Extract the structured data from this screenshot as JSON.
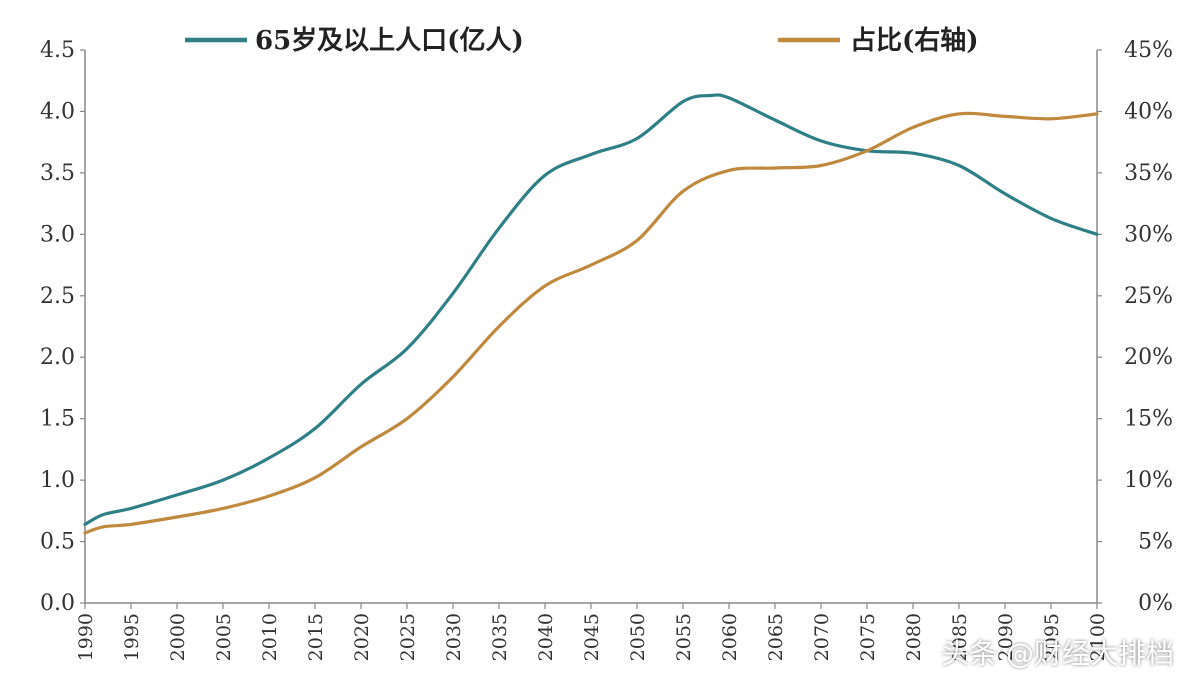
{
  "chart_data": {
    "type": "line",
    "title": "",
    "xlabel": "",
    "ylabel": "",
    "xlim": [
      1990,
      2100
    ],
    "ylim": [
      0,
      4.5
    ],
    "y2lim": [
      0,
      45
    ],
    "x_ticks": [
      "1990",
      "1995",
      "2000",
      "2005",
      "2010",
      "2015",
      "2020",
      "2025",
      "2030",
      "2035",
      "2040",
      "2045",
      "2050",
      "2055",
      "2060",
      "2065",
      "2070",
      "2075",
      "2080",
      "2085",
      "2090",
      "2095",
      "2100"
    ],
    "y_ticks": [
      "0.0",
      "0.5",
      "1.0",
      "1.5",
      "2.0",
      "2.5",
      "3.0",
      "3.5",
      "4.0",
      "4.5"
    ],
    "y2_ticks": [
      "0%",
      "5%",
      "10%",
      "15%",
      "20%",
      "25%",
      "30%",
      "35%",
      "40%",
      "45%"
    ],
    "grid": false,
    "legend_position": "top",
    "series": [
      {
        "name": "65岁及以上人口(亿人)",
        "axis": "left",
        "color": "#2e7f86",
        "x": [
          1990,
          1992,
          1995,
          2000,
          2005,
          2010,
          2015,
          2020,
          2025,
          2030,
          2035,
          2040,
          2045,
          2050,
          2055,
          2058,
          2060,
          2065,
          2070,
          2075,
          2080,
          2085,
          2090,
          2095,
          2100
        ],
        "values": [
          0.64,
          0.72,
          0.77,
          0.88,
          1.0,
          1.18,
          1.42,
          1.78,
          2.07,
          2.52,
          3.05,
          3.48,
          3.65,
          3.78,
          4.08,
          4.13,
          4.11,
          3.93,
          3.76,
          3.68,
          3.66,
          3.56,
          3.33,
          3.13,
          3.0
        ]
      },
      {
        "name": "占比(右轴)",
        "axis": "right",
        "color": "#c08a3e",
        "x": [
          1990,
          1992,
          1995,
          2000,
          2005,
          2010,
          2015,
          2020,
          2025,
          2030,
          2035,
          2040,
          2045,
          2050,
          2055,
          2060,
          2065,
          2070,
          2075,
          2080,
          2085,
          2090,
          2095,
          2100
        ],
        "values": [
          5.7,
          6.2,
          6.4,
          7.0,
          7.7,
          8.7,
          10.2,
          12.7,
          15.0,
          18.4,
          22.5,
          25.8,
          27.5,
          29.5,
          33.5,
          35.2,
          35.4,
          35.6,
          36.8,
          38.7,
          39.8,
          39.6,
          39.4,
          39.8
        ]
      }
    ]
  },
  "watermark": "头条 @财经大排档"
}
